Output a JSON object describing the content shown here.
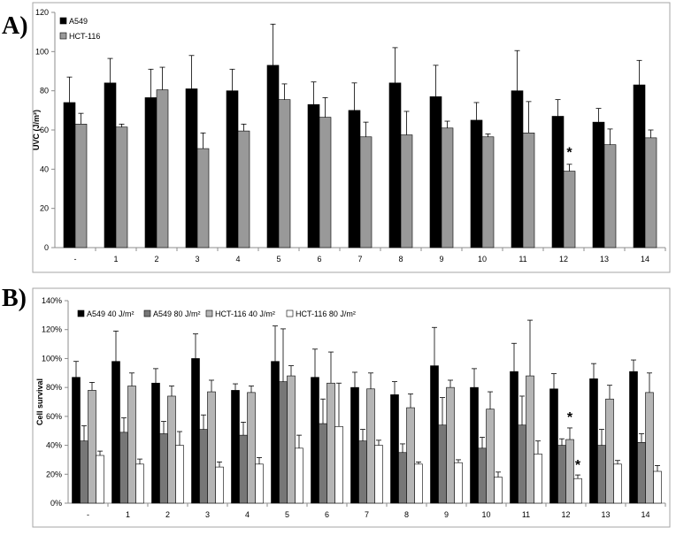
{
  "panels": [
    {
      "panel_label": "A)",
      "colors": [
        "#000000",
        "#999999"
      ],
      "chart_data": {
        "type": "bar",
        "title": "",
        "xlabel": "",
        "ylabel": "UVC (J/m²)",
        "ylim": [
          0,
          120
        ],
        "yticks": [
          "0",
          "20",
          "40",
          "60",
          "80",
          "100",
          "120"
        ],
        "categories": [
          "-",
          "1",
          "2",
          "3",
          "4",
          "5",
          "6",
          "7",
          "8",
          "9",
          "10",
          "11",
          "12",
          "13",
          "14"
        ],
        "legend_position": "top-left",
        "grid": false,
        "series": [
          {
            "name": "A549",
            "values": [
              74,
              84,
              76.5,
              81,
              80,
              93,
              73,
              70,
              84,
              77,
              65,
              80,
              67,
              64,
              83
            ],
            "errors": [
              13,
              12.5,
              14.5,
              17,
              11,
              21,
              11.5,
              14,
              18,
              16,
              9,
              20.5,
              8.5,
              7,
              12.5
            ]
          },
          {
            "name": "HCT-116",
            "values": [
              63,
              61.5,
              80.5,
              50.5,
              59.5,
              75.5,
              66.5,
              56.5,
              57.5,
              61,
              56.5,
              58.5,
              39,
              52.5,
              56
            ],
            "errors": [
              5.5,
              1.5,
              11.5,
              8,
              3.5,
              8,
              10,
              7.5,
              12,
              3.5,
              1.5,
              16,
              3.5,
              8,
              4
            ]
          }
        ],
        "annotations": [
          {
            "text": "*",
            "category": "12",
            "series": 1,
            "value": 49
          }
        ]
      }
    },
    {
      "panel_label": "B)",
      "colors": [
        "#000000",
        "#777777",
        "#b5b5b5",
        "#ffffff"
      ],
      "chart_data": {
        "type": "bar",
        "title": "",
        "xlabel": "",
        "ylabel": "Cell survival",
        "ylim": [
          0,
          140
        ],
        "yticks": [
          "0%",
          "20%",
          "40%",
          "60%",
          "80%",
          "100%",
          "120%",
          "140%"
        ],
        "categories": [
          "-",
          "1",
          "2",
          "3",
          "4",
          "5",
          "6",
          "7",
          "8",
          "9",
          "10",
          "11",
          "12",
          "13",
          "14"
        ],
        "legend_position": "top-left",
        "grid": false,
        "series": [
          {
            "name": "A549 40 J/m²",
            "values": [
              87,
              98,
              83,
              100,
              78,
              98,
              87,
              80,
              75,
              95,
              80,
              91,
              79,
              86,
              91
            ],
            "errors": [
              11,
              21,
              10,
              17,
              4.5,
              24.5,
              19.5,
              10.5,
              9,
              26.5,
              13,
              19.5,
              10.5,
              10.5,
              8
            ]
          },
          {
            "name": "A549 80 J/m²",
            "values": [
              43,
              49,
              48,
              51,
              47,
              84,
              55,
              43,
              35,
              54,
              38,
              54,
              40,
              40,
              42
            ],
            "errors": [
              10.5,
              10,
              8.5,
              10,
              9,
              36.5,
              17,
              8,
              6,
              19,
              7.5,
              20,
              4.5,
              11,
              6
            ]
          },
          {
            "name": "HCT-116 40 J/m²",
            "values": [
              78,
              81,
              74,
              77,
              76.5,
              88,
              83,
              79,
              66,
              80,
              65,
              88,
              44,
              72,
              76.5
            ],
            "errors": [
              5.5,
              9,
              7,
              8,
              4.5,
              7,
              21.5,
              11,
              9.5,
              5,
              12,
              38.5,
              8,
              9.5,
              13.5
            ]
          },
          {
            "name": "HCT-116 80 J/m²",
            "values": [
              33,
              27,
              40,
              25,
              27,
              38,
              53,
              40,
              27,
              28,
              18,
              34,
              17,
              27,
              22
            ],
            "errors": [
              3,
              3.5,
              9.5,
              3.5,
              4.5,
              9,
              30,
              3.5,
              1.5,
              2,
              3.5,
              9,
              2.5,
              2.5,
              4
            ]
          }
        ],
        "annotations": [
          {
            "text": "*",
            "category": "12",
            "series": 2,
            "value": 60
          },
          {
            "text": "*",
            "category": "12",
            "series": 3,
            "value": 27
          }
        ]
      }
    }
  ]
}
